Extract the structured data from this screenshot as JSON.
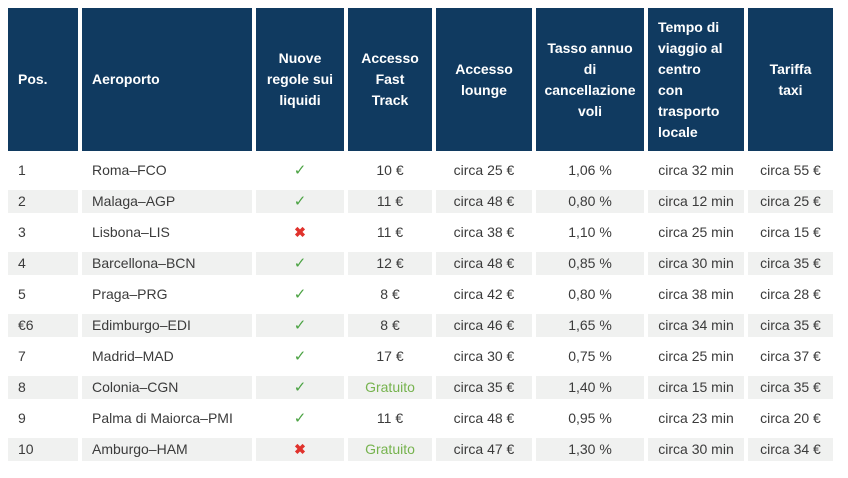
{
  "chart_data": {
    "type": "table",
    "columns": [
      {
        "id": "pos",
        "label": "Pos."
      },
      {
        "id": "airport",
        "label": "Aeroporto"
      },
      {
        "id": "liquids",
        "label": "Nuove\nregole sui\nliquidi"
      },
      {
        "id": "fast_track",
        "label": "Accesso\nFast\nTrack"
      },
      {
        "id": "lounge",
        "label": "Accesso\nlounge"
      },
      {
        "id": "cancellation",
        "label": "Tasso annuo\ndi\ncancellazione\nvoli"
      },
      {
        "id": "travel_time",
        "label": "Tempo di\nviaggio al\ncentro\ncon\ntrasporto\nlocale"
      },
      {
        "id": "taxi",
        "label": "Tariffa\ntaxi"
      }
    ],
    "rows": [
      {
        "pos": "1",
        "airport": "Roma–FCO",
        "liquids": "check",
        "fast_track": "10 €",
        "lounge": "circa 25 €",
        "cancellation": "1,06 %",
        "travel_time": "circa 32 min",
        "taxi": "circa 55 €"
      },
      {
        "pos": "2",
        "airport": "Malaga–AGP",
        "liquids": "check",
        "fast_track": "11 €",
        "lounge": "circa 48 €",
        "cancellation": "0,80 %",
        "travel_time": "circa 12 min",
        "taxi": "circa 25 €"
      },
      {
        "pos": "3",
        "airport": "Lisbona–LIS",
        "liquids": "cross",
        "fast_track": "11 €",
        "lounge": "circa 38 €",
        "cancellation": "1,10 %",
        "travel_time": "circa 25 min",
        "taxi": "circa 15 €"
      },
      {
        "pos": "4",
        "airport": "Barcellona–BCN",
        "liquids": "check",
        "fast_track": "12 €",
        "lounge": "circa 48 €",
        "cancellation": "0,85 %",
        "travel_time": "circa 30 min",
        "taxi": "circa 35 €"
      },
      {
        "pos": "5",
        "airport": "Praga–PRG",
        "liquids": "check",
        "fast_track": "8 €",
        "lounge": "circa 42 €",
        "cancellation": "0,80 %",
        "travel_time": "circa 38 min",
        "taxi": "circa 28 €"
      },
      {
        "pos": "€6",
        "airport": "Edimburgo–EDI",
        "liquids": "check",
        "fast_track": "8 €",
        "lounge": "circa 46 €",
        "cancellation": "1,65 %",
        "travel_time": "circa 34 min",
        "taxi": "circa 35 €"
      },
      {
        "pos": "7",
        "airport": "Madrid–MAD",
        "liquids": "check",
        "fast_track": "17 €",
        "lounge": "circa 30 €",
        "cancellation": "0,75 %",
        "travel_time": "circa 25 min",
        "taxi": "circa 37 €"
      },
      {
        "pos": "8",
        "airport": "Colonia–CGN",
        "liquids": "check",
        "fast_track": "Gratuito",
        "lounge": "circa 35 €",
        "cancellation": "1,40 %",
        "travel_time": "circa 15 min",
        "taxi": "circa 35 €"
      },
      {
        "pos": "9",
        "airport": "Palma di Maiorca–PMI",
        "liquids": "check",
        "fast_track": "11 €",
        "lounge": "circa 48 €",
        "cancellation": "0,95 %",
        "travel_time": "circa 23 min",
        "taxi": "circa 20 €"
      },
      {
        "pos": "10",
        "airport": "Amburgo–HAM",
        "liquids": "cross",
        "fast_track": "Gratuito",
        "lounge": "circa 47 €",
        "cancellation": "1,30 %",
        "travel_time": "circa 30 min",
        "taxi": "circa 34 €"
      }
    ],
    "free_label": "Gratuito"
  },
  "icons": {
    "check": "✓",
    "cross": "✖"
  },
  "colors": {
    "header_bg": "#103a60",
    "header_fg": "#ffffff",
    "stripe_bg": "#f0f1f0",
    "body_fg": "#3b3b3b",
    "check_green": "#4ca344",
    "cross_red": "#e0322c",
    "free_green": "#76b34e"
  }
}
